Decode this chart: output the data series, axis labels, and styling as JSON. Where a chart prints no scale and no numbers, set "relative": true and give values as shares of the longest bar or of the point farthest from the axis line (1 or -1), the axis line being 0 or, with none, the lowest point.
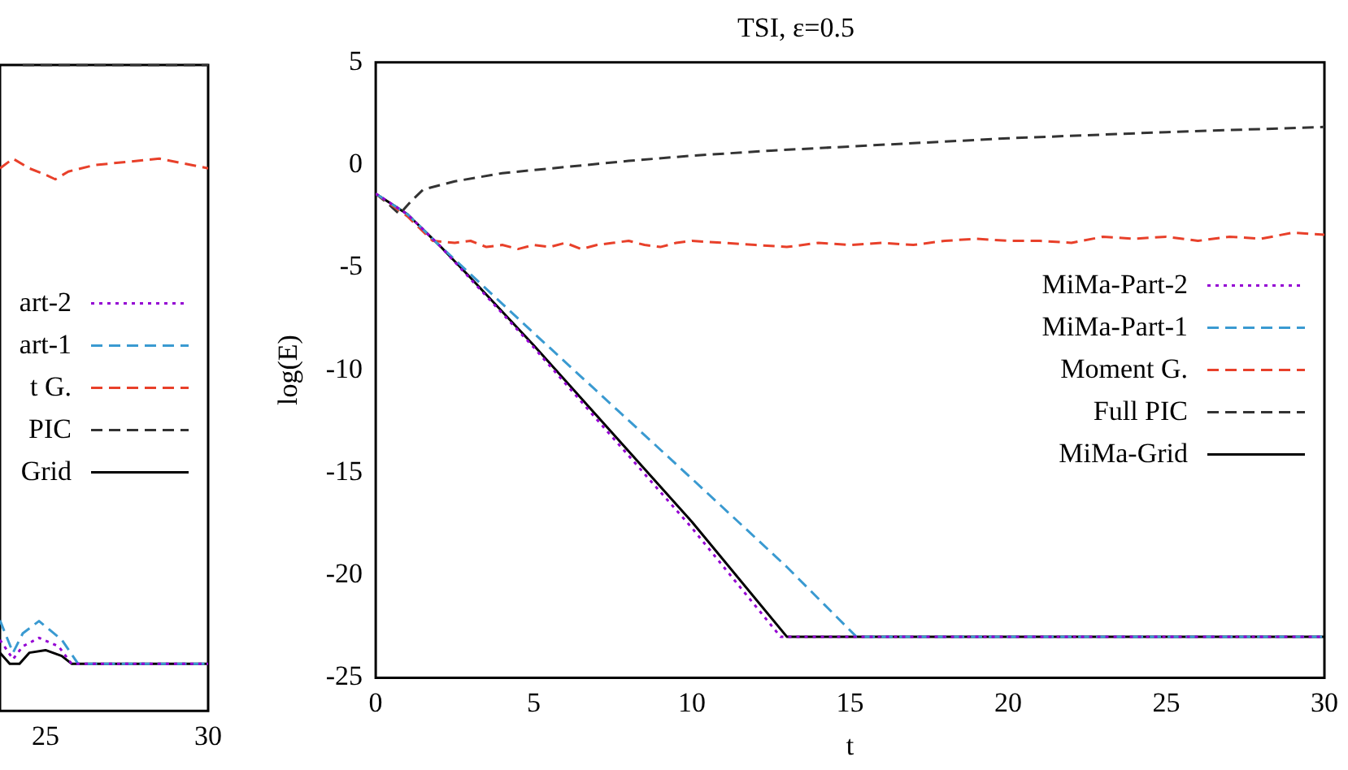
{
  "chart_data": [
    {
      "type": "line",
      "relative": true,
      "xlim": [
        23.6,
        30
      ],
      "xticks": [
        25,
        30
      ],
      "legend": "right",
      "tick_labels": "x",
      "series": [
        {
          "name": "art-2",
          "color": "#9400d3",
          "line_style": "dotted",
          "x": [
            23.6,
            24,
            24.3,
            24.8,
            25.4,
            25.8,
            30
          ],
          "values": [
            0.11,
            0.08,
            0.1,
            0.113,
            0.1,
            0.073,
            0.073
          ]
        },
        {
          "name": "art-1",
          "color": "#3a9ad1",
          "line_style": "dashed",
          "x": [
            23.6,
            24,
            24.3,
            24.8,
            25.5,
            26,
            30
          ],
          "values": [
            0.14,
            0.09,
            0.12,
            0.139,
            0.11,
            0.073,
            0.073
          ]
        },
        {
          "name": "t G.",
          "color": "#e8402a",
          "line_style": "dashed",
          "x": [
            23.6,
            24,
            24.5,
            25,
            25.3,
            25.7,
            26.5,
            27.5,
            28.5,
            29.5,
            30
          ],
          "values": [
            0.84,
            0.855,
            0.84,
            0.83,
            0.823,
            0.835,
            0.845,
            0.85,
            0.855,
            0.845,
            0.84
          ]
        },
        {
          "name": "PIC",
          "color": "#333333",
          "line_style": "dashed",
          "x": [
            24.3,
            30
          ],
          "values": [
            1,
            1
          ]
        },
        {
          "name": "Grid",
          "color": "#000000",
          "line_style": "solid",
          "x": [
            23.6,
            23.9,
            24.2,
            24.5,
            25,
            25.5,
            25.8,
            30
          ],
          "values": [
            0.09,
            0.073,
            0.073,
            0.09,
            0.094,
            0.085,
            0.073,
            0.073
          ]
        }
      ]
    },
    {
      "type": "line",
      "title": "TSI, ε=0.5",
      "xlabel": "t",
      "ylabel": "log(E)",
      "xlim": [
        0,
        30
      ],
      "ylim": [
        -25,
        5
      ],
      "xticks": [
        0,
        5,
        10,
        15,
        20,
        25,
        30
      ],
      "yticks": [
        -25,
        -20,
        -15,
        -10,
        -5,
        0,
        5
      ],
      "legend": "right",
      "series": [
        {
          "name": "MiMa-Part-2",
          "color": "#9400d3",
          "line_style": "dotted",
          "x": [
            0,
            1,
            2,
            5,
            10,
            12.8,
            30
          ],
          "values": [
            -1.4,
            -2.4,
            -3.9,
            -8.9,
            -17.7,
            -23,
            -23
          ]
        },
        {
          "name": "MiMa-Part-1",
          "color": "#3a9ad1",
          "line_style": "dashed",
          "x": [
            0,
            1,
            2,
            5,
            10,
            13,
            15.2,
            30
          ],
          "values": [
            -1.4,
            -2.4,
            -3.9,
            -8.2,
            -15.3,
            -19.6,
            -23,
            -23
          ]
        },
        {
          "name": "Moment G.",
          "color": "#e8402a",
          "line_style": "dashed",
          "x": [
            0,
            1,
            1.8,
            2.5,
            3,
            3.5,
            4,
            4.5,
            5,
            5.5,
            6,
            6.5,
            7,
            7.5,
            8,
            8.5,
            9,
            9.5,
            10,
            11,
            12,
            13,
            14,
            15,
            16,
            17,
            18,
            19,
            20,
            21,
            22,
            23,
            24,
            25,
            26,
            27,
            28,
            29,
            30
          ],
          "values": [
            -1.4,
            -2.5,
            -3.7,
            -3.8,
            -3.7,
            -4.0,
            -3.9,
            -4.1,
            -3.9,
            -4.0,
            -3.8,
            -4.1,
            -3.9,
            -3.8,
            -3.7,
            -3.9,
            -4.0,
            -3.8,
            -3.7,
            -3.8,
            -3.9,
            -4.0,
            -3.8,
            -3.9,
            -3.8,
            -3.9,
            -3.7,
            -3.6,
            -3.7,
            -3.7,
            -3.8,
            -3.5,
            -3.6,
            -3.5,
            -3.7,
            -3.5,
            -3.6,
            -3.3,
            -3.4
          ]
        },
        {
          "name": "Full PIC",
          "color": "#333333",
          "line_style": "dashed",
          "x": [
            0,
            0.4,
            0.75,
            1.1,
            1.5,
            2,
            2.5,
            4,
            6,
            8,
            10,
            12.5,
            15,
            20,
            25,
            30
          ],
          "values": [
            -1.4,
            -1.9,
            -2.4,
            -1.8,
            -1.2,
            -1.0,
            -0.8,
            -0.4,
            -0.1,
            0.2,
            0.45,
            0.7,
            0.9,
            1.3,
            1.6,
            1.85
          ]
        },
        {
          "name": "MiMa-Grid",
          "color": "#000000",
          "line_style": "solid",
          "x": [
            0,
            1,
            2,
            3,
            5,
            10,
            13,
            30
          ],
          "values": [
            -1.4,
            -2.4,
            -3.9,
            -5.5,
            -8.8,
            -17.4,
            -23,
            -23
          ]
        }
      ]
    }
  ]
}
